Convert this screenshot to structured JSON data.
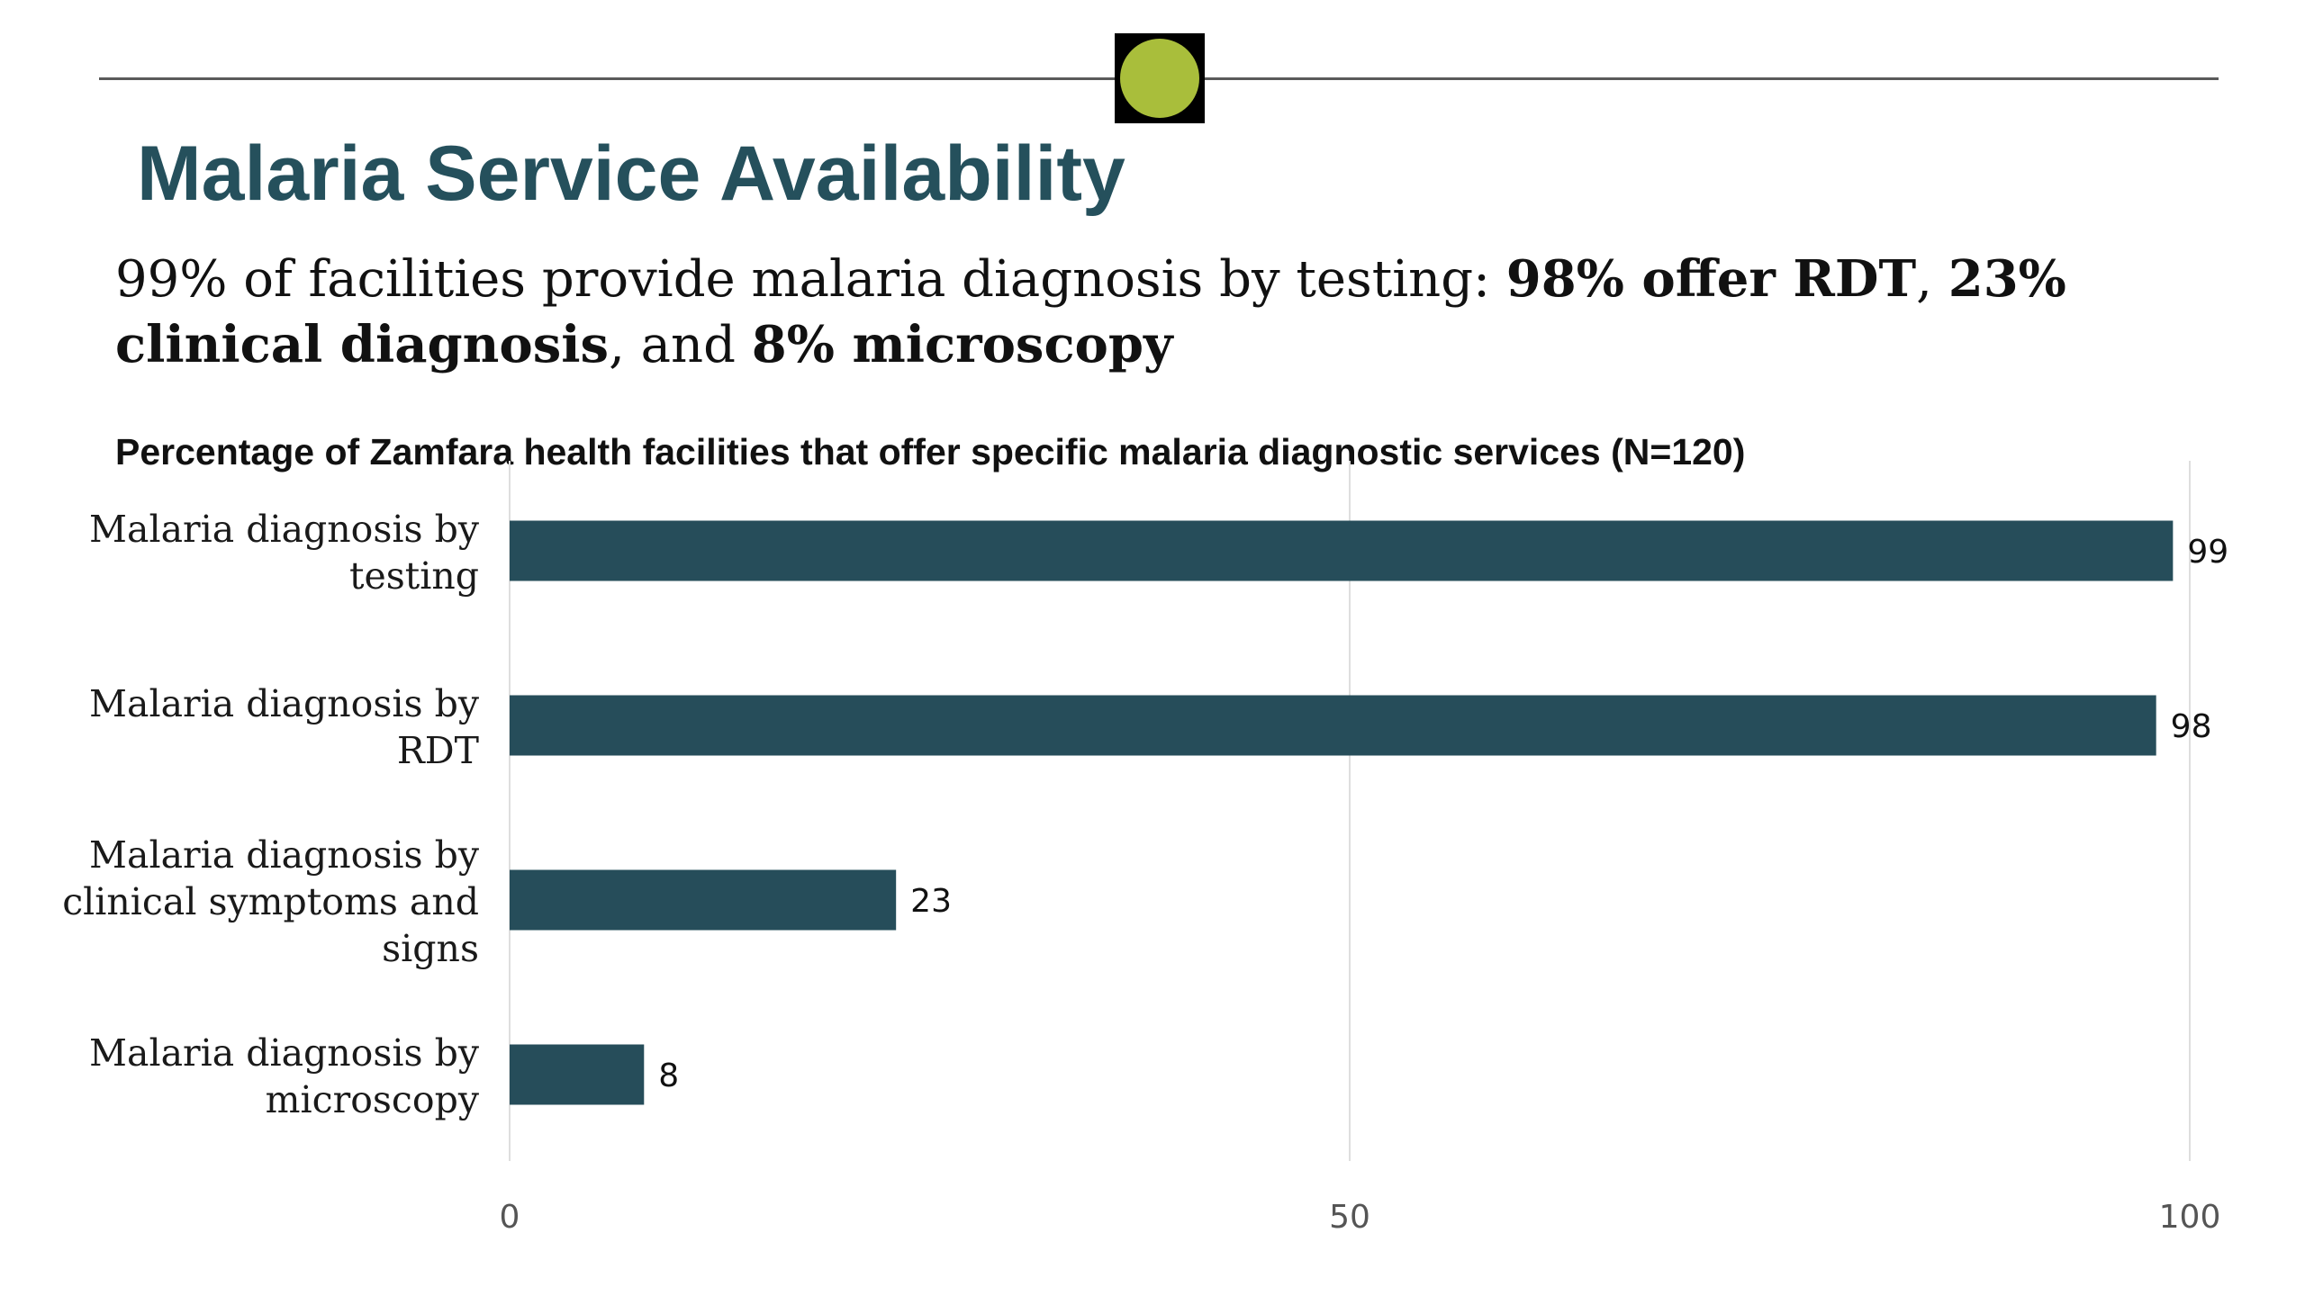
{
  "slide": {
    "title": "Malaria Service Availability",
    "summary": {
      "part1": "99% of facilities provide malaria diagnosis by testing: ",
      "bold1": "98% offer RDT",
      "part2": ", ",
      "bold2": "23% clinical diagnosis",
      "part3": ", and ",
      "bold3": "8% microscopy"
    },
    "colors": {
      "title": "#25505c",
      "bar": "#264d5a",
      "badge_fill": "#a9be3b",
      "badge_border": "#000000",
      "rule": "#5a5a5a"
    }
  },
  "chart_data": {
    "type": "bar",
    "orientation": "horizontal",
    "title": "Percentage of Zamfara health facilities that offer specific malaria diagnostic services (N=120)",
    "categories": [
      [
        "Malaria diagnosis by",
        "testing"
      ],
      [
        "Malaria diagnosis by",
        "RDT"
      ],
      [
        "Malaria diagnosis by",
        "clinical symptoms and",
        "signs"
      ],
      [
        "Malaria diagnosis by",
        "microscopy"
      ]
    ],
    "values": [
      99,
      98,
      23,
      8
    ],
    "xlim": [
      0,
      100
    ],
    "xticks": [
      0,
      50,
      100
    ],
    "xtick_labels": [
      "0",
      "50",
      "100"
    ],
    "grid": "vertical",
    "data_labels": true
  }
}
